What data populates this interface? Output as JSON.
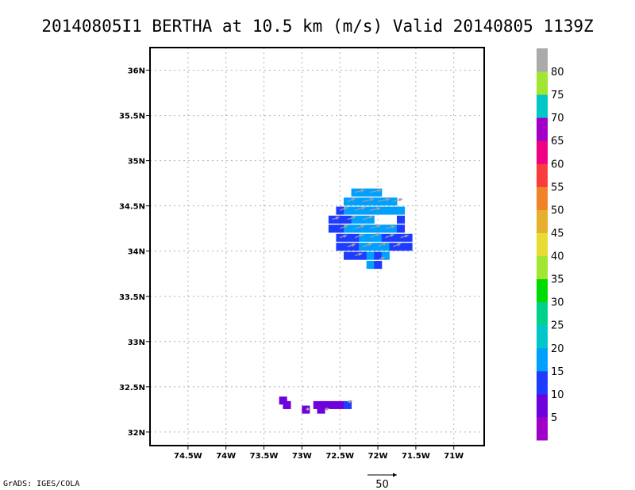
{
  "title": "20140805I1 BERTHA at 10.5 km (m/s) Valid 20140805 1139Z",
  "footer": "GrADS: IGES/COLA",
  "chart_data": {
    "type": "heatmap",
    "x_range": [
      -75.0,
      -70.6
    ],
    "y_range": [
      31.85,
      36.25
    ],
    "x_ticks": [
      {
        "value": -74.5,
        "label": "74.5W"
      },
      {
        "value": -74.0,
        "label": "74W"
      },
      {
        "value": -73.5,
        "label": "73.5W"
      },
      {
        "value": -73.0,
        "label": "73W"
      },
      {
        "value": -72.5,
        "label": "72.5W"
      },
      {
        "value": -72.0,
        "label": "72W"
      },
      {
        "value": -71.5,
        "label": "71.5W"
      },
      {
        "value": -71.0,
        "label": "71W"
      }
    ],
    "y_ticks": [
      {
        "value": 32.0,
        "label": "32N"
      },
      {
        "value": 32.5,
        "label": "32.5N"
      },
      {
        "value": 33.0,
        "label": "33N"
      },
      {
        "value": 33.5,
        "label": "33.5N"
      },
      {
        "value": 34.0,
        "label": "34N"
      },
      {
        "value": 34.5,
        "label": "34.5N"
      },
      {
        "value": 35.0,
        "label": "35N"
      },
      {
        "value": 35.5,
        "label": "35.5N"
      },
      {
        "value": 36.0,
        "label": "36N"
      }
    ],
    "grid": true,
    "colorbar": {
      "labels": [
        "5",
        "10",
        "15",
        "20",
        "25",
        "30",
        "35",
        "40",
        "45",
        "50",
        "55",
        "60",
        "65",
        "70",
        "75",
        "80"
      ],
      "colors": [
        "#a000c8",
        "#6e00dc",
        "#1e3cff",
        "#00a0ff",
        "#00c8c8",
        "#00d28c",
        "#00dc00",
        "#a0e632",
        "#e6dc32",
        "#e6af2d",
        "#f08228",
        "#fa3c3c",
        "#f00082",
        "#a000c8",
        "#00c8c8",
        "#a0e632",
        "#aaaaaa"
      ]
    },
    "cells": [
      {
        "lon": -72.3,
        "lat": 34.65,
        "c": 3
      },
      {
        "lon": -72.2,
        "lat": 34.65,
        "c": 3
      },
      {
        "lon": -72.1,
        "lat": 34.65,
        "c": 3
      },
      {
        "lon": -72.0,
        "lat": 34.65,
        "c": 3
      },
      {
        "lon": -72.4,
        "lat": 34.55,
        "c": 3
      },
      {
        "lon": -72.3,
        "lat": 34.55,
        "c": 3
      },
      {
        "lon": -72.2,
        "lat": 34.55,
        "c": 3
      },
      {
        "lon": -72.1,
        "lat": 34.55,
        "c": 3
      },
      {
        "lon": -72.0,
        "lat": 34.55,
        "c": 3
      },
      {
        "lon": -71.9,
        "lat": 34.55,
        "c": 3
      },
      {
        "lon": -71.8,
        "lat": 34.55,
        "c": 3
      },
      {
        "lon": -72.5,
        "lat": 34.45,
        "c": 2
      },
      {
        "lon": -72.4,
        "lat": 34.45,
        "c": 3
      },
      {
        "lon": -72.3,
        "lat": 34.45,
        "c": 3
      },
      {
        "lon": -72.2,
        "lat": 34.45,
        "c": 3
      },
      {
        "lon": -72.1,
        "lat": 34.45,
        "c": 3
      },
      {
        "lon": -72.0,
        "lat": 34.45,
        "c": 3
      },
      {
        "lon": -71.9,
        "lat": 34.45,
        "c": 3
      },
      {
        "lon": -71.8,
        "lat": 34.45,
        "c": 3
      },
      {
        "lon": -71.7,
        "lat": 34.45,
        "c": 3
      },
      {
        "lon": -72.6,
        "lat": 34.35,
        "c": 2
      },
      {
        "lon": -72.5,
        "lat": 34.35,
        "c": 2
      },
      {
        "lon": -72.4,
        "lat": 34.35,
        "c": 2
      },
      {
        "lon": -72.3,
        "lat": 34.35,
        "c": 3
      },
      {
        "lon": -72.2,
        "lat": 34.35,
        "c": 3
      },
      {
        "lon": -72.1,
        "lat": 34.35,
        "c": 3
      },
      {
        "lon": -71.7,
        "lat": 34.35,
        "c": 2
      },
      {
        "lon": -72.6,
        "lat": 34.25,
        "c": 2
      },
      {
        "lon": -72.5,
        "lat": 34.25,
        "c": 2
      },
      {
        "lon": -72.4,
        "lat": 34.25,
        "c": 3
      },
      {
        "lon": -72.3,
        "lat": 34.25,
        "c": 3
      },
      {
        "lon": -72.2,
        "lat": 34.25,
        "c": 3
      },
      {
        "lon": -72.1,
        "lat": 34.25,
        "c": 3
      },
      {
        "lon": -72.0,
        "lat": 34.25,
        "c": 3
      },
      {
        "lon": -71.9,
        "lat": 34.25,
        "c": 3
      },
      {
        "lon": -71.8,
        "lat": 34.25,
        "c": 3
      },
      {
        "lon": -71.7,
        "lat": 34.25,
        "c": 2
      },
      {
        "lon": -72.5,
        "lat": 34.15,
        "c": 2
      },
      {
        "lon": -72.4,
        "lat": 34.15,
        "c": 2
      },
      {
        "lon": -72.3,
        "lat": 34.15,
        "c": 2
      },
      {
        "lon": -72.2,
        "lat": 34.15,
        "c": 3
      },
      {
        "lon": -72.1,
        "lat": 34.15,
        "c": 3
      },
      {
        "lon": -72.0,
        "lat": 34.15,
        "c": 3
      },
      {
        "lon": -71.9,
        "lat": 34.15,
        "c": 2
      },
      {
        "lon": -71.8,
        "lat": 34.15,
        "c": 2
      },
      {
        "lon": -71.7,
        "lat": 34.15,
        "c": 2
      },
      {
        "lon": -71.6,
        "lat": 34.15,
        "c": 2
      },
      {
        "lon": -72.5,
        "lat": 34.05,
        "c": 2
      },
      {
        "lon": -72.4,
        "lat": 34.05,
        "c": 2
      },
      {
        "lon": -72.3,
        "lat": 34.05,
        "c": 2
      },
      {
        "lon": -72.2,
        "lat": 34.05,
        "c": 3
      },
      {
        "lon": -72.1,
        "lat": 34.05,
        "c": 3
      },
      {
        "lon": -72.0,
        "lat": 34.05,
        "c": 3
      },
      {
        "lon": -71.9,
        "lat": 34.05,
        "c": 3
      },
      {
        "lon": -71.8,
        "lat": 34.05,
        "c": 2
      },
      {
        "lon": -71.7,
        "lat": 34.05,
        "c": 2
      },
      {
        "lon": -71.6,
        "lat": 34.05,
        "c": 2
      },
      {
        "lon": -72.4,
        "lat": 33.95,
        "c": 2
      },
      {
        "lon": -72.3,
        "lat": 33.95,
        "c": 2
      },
      {
        "lon": -72.2,
        "lat": 33.95,
        "c": 2
      },
      {
        "lon": -72.1,
        "lat": 33.95,
        "c": 3
      },
      {
        "lon": -72.0,
        "lat": 33.95,
        "c": 2
      },
      {
        "lon": -71.9,
        "lat": 33.95,
        "c": 3
      },
      {
        "lon": -72.1,
        "lat": 33.85,
        "c": 3
      },
      {
        "lon": -72.0,
        "lat": 33.85,
        "c": 2
      },
      {
        "lon": -73.25,
        "lat": 32.35,
        "c": 1
      },
      {
        "lon": -73.2,
        "lat": 32.3,
        "c": 1
      },
      {
        "lon": -72.95,
        "lat": 32.25,
        "c": 1
      },
      {
        "lon": -72.75,
        "lat": 32.25,
        "c": 1
      },
      {
        "lon": -72.8,
        "lat": 32.3,
        "c": 1
      },
      {
        "lon": -72.7,
        "lat": 32.3,
        "c": 1
      },
      {
        "lon": -72.6,
        "lat": 32.3,
        "c": 1
      },
      {
        "lon": -72.5,
        "lat": 32.3,
        "c": 1
      },
      {
        "lon": -72.4,
        "lat": 32.3,
        "c": 2
      }
    ],
    "vectors": [
      {
        "lon": -72.3,
        "lat": 34.65,
        "u": 12,
        "v": 3
      },
      {
        "lon": -72.1,
        "lat": 34.65,
        "u": 14,
        "v": 3
      },
      {
        "lon": -72.4,
        "lat": 34.55,
        "u": 10,
        "v": 4
      },
      {
        "lon": -72.2,
        "lat": 34.55,
        "u": 14,
        "v": 3
      },
      {
        "lon": -72.0,
        "lat": 34.55,
        "u": 15,
        "v": 3
      },
      {
        "lon": -71.8,
        "lat": 34.55,
        "u": 12,
        "v": 3
      },
      {
        "lon": -72.5,
        "lat": 34.45,
        "u": 10,
        "v": 4
      },
      {
        "lon": -72.3,
        "lat": 34.45,
        "u": 13,
        "v": 4
      },
      {
        "lon": -72.1,
        "lat": 34.45,
        "u": 13,
        "v": 3
      },
      {
        "lon": -72.6,
        "lat": 34.35,
        "u": 9,
        "v": 3
      },
      {
        "lon": -72.4,
        "lat": 34.35,
        "u": 11,
        "v": 4
      },
      {
        "lon": -72.2,
        "lat": 34.35,
        "u": 13,
        "v": 4
      },
      {
        "lon": -72.5,
        "lat": 34.25,
        "u": 10,
        "v": 4
      },
      {
        "lon": -72.3,
        "lat": 34.25,
        "u": 12,
        "v": 4
      },
      {
        "lon": -72.1,
        "lat": 34.25,
        "u": 13,
        "v": 4
      },
      {
        "lon": -71.9,
        "lat": 34.25,
        "u": 12,
        "v": 3
      },
      {
        "lon": -72.5,
        "lat": 34.15,
        "u": 9,
        "v": 3
      },
      {
        "lon": -72.3,
        "lat": 34.15,
        "u": 11,
        "v": 4
      },
      {
        "lon": -72.1,
        "lat": 34.15,
        "u": 12,
        "v": 5
      },
      {
        "lon": -71.9,
        "lat": 34.15,
        "u": 11,
        "v": 4
      },
      {
        "lon": -71.7,
        "lat": 34.15,
        "u": 10,
        "v": 3
      },
      {
        "lon": -72.4,
        "lat": 34.05,
        "u": 10,
        "v": 3
      },
      {
        "lon": -72.2,
        "lat": 34.05,
        "u": 12,
        "v": 4
      },
      {
        "lon": -72.0,
        "lat": 34.05,
        "u": 11,
        "v": 5
      },
      {
        "lon": -71.8,
        "lat": 34.05,
        "u": 10,
        "v": 4
      },
      {
        "lon": -72.3,
        "lat": 33.95,
        "u": 9,
        "v": 3
      },
      {
        "lon": -72.0,
        "lat": 33.9,
        "u": 9,
        "v": 4
      },
      {
        "lon": -72.95,
        "lat": 32.25,
        "u": 6,
        "v": 1
      },
      {
        "lon": -72.7,
        "lat": 32.25,
        "u": 6,
        "v": 1
      },
      {
        "lon": -72.4,
        "lat": 32.33,
        "u": 6,
        "v": 2
      }
    ],
    "reference_vector": {
      "value": 50,
      "label": "50"
    }
  }
}
